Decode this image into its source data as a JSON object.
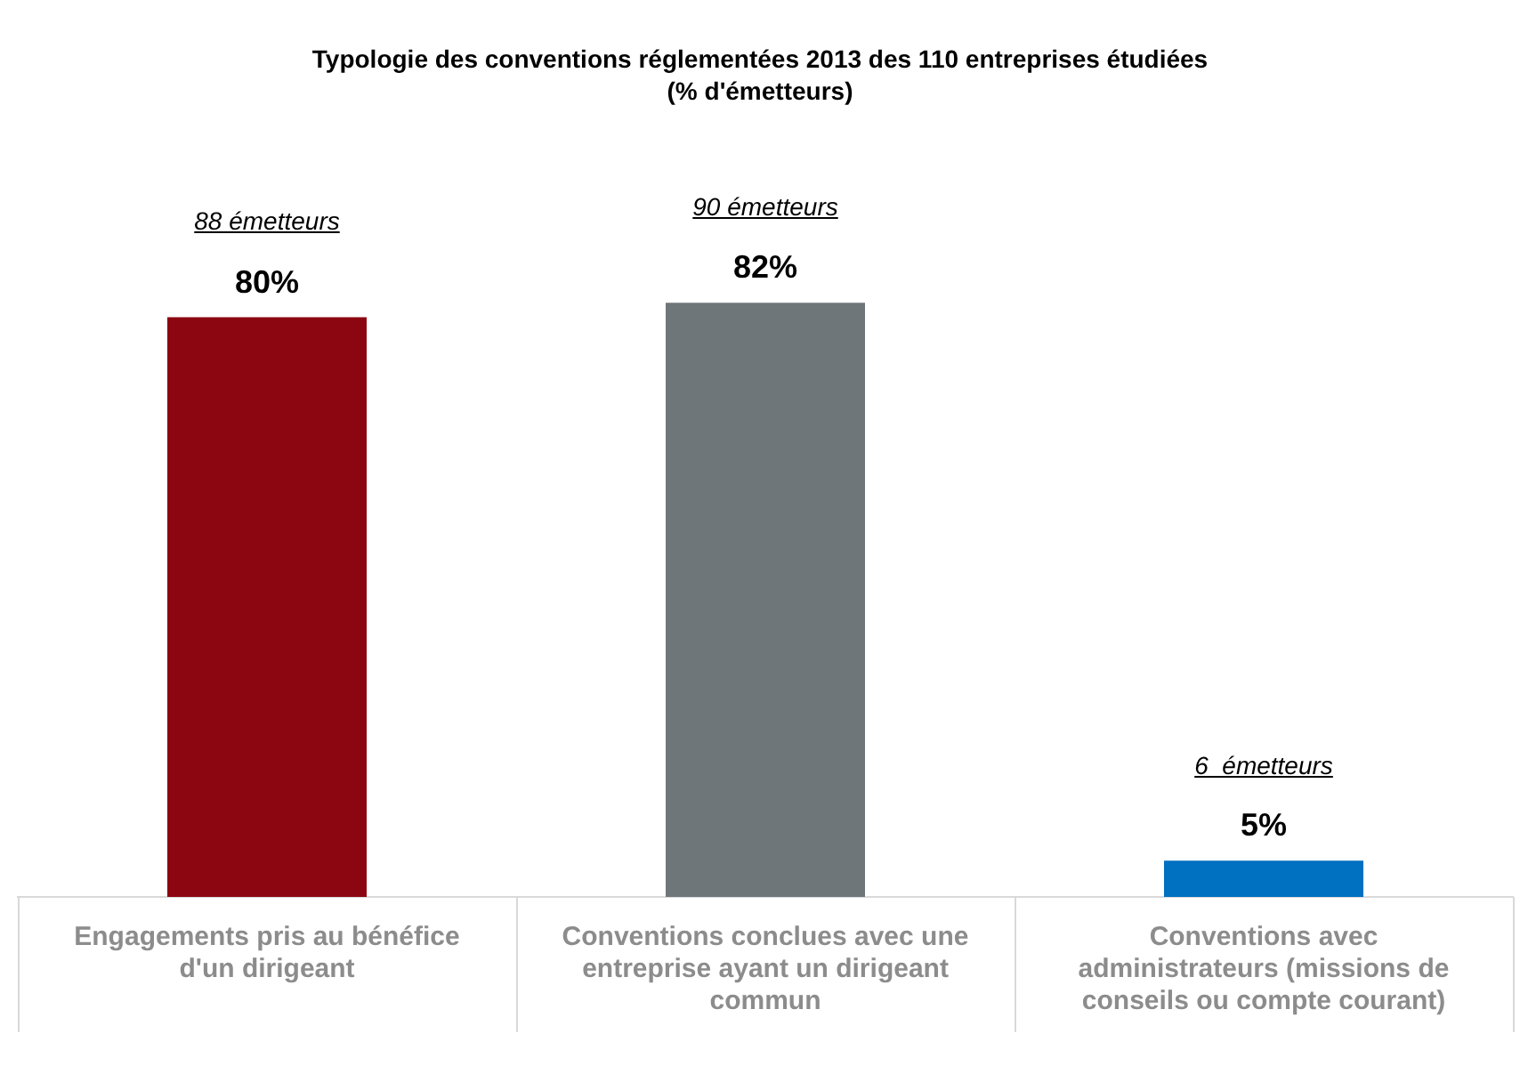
{
  "chart_data": {
    "type": "bar",
    "title": "Typologie des conventions réglementées 2013 des 110 entreprises étudiées",
    "subtitle": "(% d'émetteurs)",
    "categories": [
      "Engagements pris au bénéfice d'un dirigeant",
      "Conventions conclues avec une entreprise ayant un dirigeant commun",
      "Conventions avec administrateurs (missions de conseils ou compte courant)"
    ],
    "values": [
      80,
      82,
      5
    ],
    "value_labels": [
      "80%",
      "82%",
      "5%"
    ],
    "colors": [
      "#8b0610",
      "#6f7679",
      "#0070c0"
    ],
    "legend": false,
    "annotations": [
      "88 émetteurs",
      "90 émetteurs",
      "6  émetteurs"
    ]
  }
}
